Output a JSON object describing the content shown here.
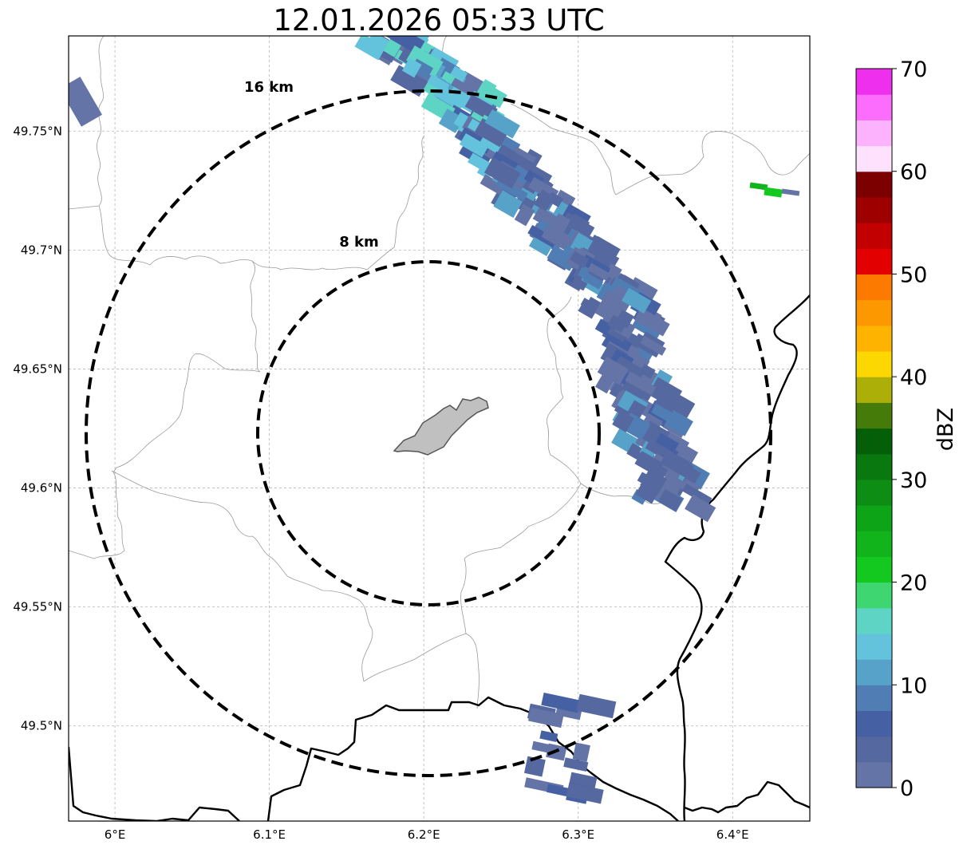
{
  "title": "12.01.2026 05:33 UTC",
  "map": {
    "lon_range": [
      5.97,
      6.45
    ],
    "lat_range": [
      49.46,
      49.79
    ],
    "lon_ticks": [
      {
        "value": 6.0,
        "label": "6°E"
      },
      {
        "value": 6.1,
        "label": "6.1°E"
      },
      {
        "value": 6.2,
        "label": "6.2°E"
      },
      {
        "value": 6.3,
        "label": "6.3°E"
      },
      {
        "value": 6.4,
        "label": "6.4°E"
      }
    ],
    "lat_ticks": [
      {
        "value": 49.75,
        "label": "49.75°N"
      },
      {
        "value": 49.7,
        "label": "49.7°N"
      },
      {
        "value": 49.65,
        "label": "49.65°N"
      },
      {
        "value": 49.6,
        "label": "49.6°N"
      },
      {
        "value": 49.55,
        "label": "49.55°N"
      },
      {
        "value": 49.5,
        "label": "49.5°N"
      }
    ],
    "gridlines": true,
    "range_rings": [
      {
        "label": "8 km",
        "radius_km": 8
      },
      {
        "label": "16 km",
        "radius_km": 16
      }
    ],
    "colors": {
      "ring": "#000000",
      "border": "#000000",
      "admin_boundary": "#9a9a9a",
      "grid": "#b5b5b5",
      "city": "#c0c0c0"
    }
  },
  "colorbar": {
    "label": "dBZ",
    "ticks": [
      "0",
      "10",
      "20",
      "30",
      "40",
      "50",
      "60",
      "70"
    ],
    "colors": [
      "#6474a6",
      "#5569a0",
      "#4660a4",
      "#4f7db4",
      "#56a2c9",
      "#63c3dd",
      "#5ed5c4",
      "#3ed670",
      "#13c81e",
      "#12b41c",
      "#0ea418",
      "#0d8d14",
      "#09780f",
      "#055f09",
      "#457b09",
      "#abaf08",
      "#fdd701",
      "#fdb300",
      "#fd9800",
      "#fd7a00",
      "#e20000",
      "#c20000",
      "#9e0000",
      "#7c0000",
      "#fde1fd",
      "#fdb2fd",
      "#fd6dfd",
      "#ee30ee"
    ]
  },
  "chart_data": {
    "type": "map",
    "title": "12.01.2026 05:33 UTC",
    "projection": "lat/lon",
    "xlim": [
      5.97,
      6.45
    ],
    "ylim": [
      49.46,
      49.79
    ],
    "rings_km": [
      8,
      16
    ],
    "colorbar": {
      "label": "dBZ",
      "min": 0,
      "max": 70,
      "step": 2.5
    }
  }
}
